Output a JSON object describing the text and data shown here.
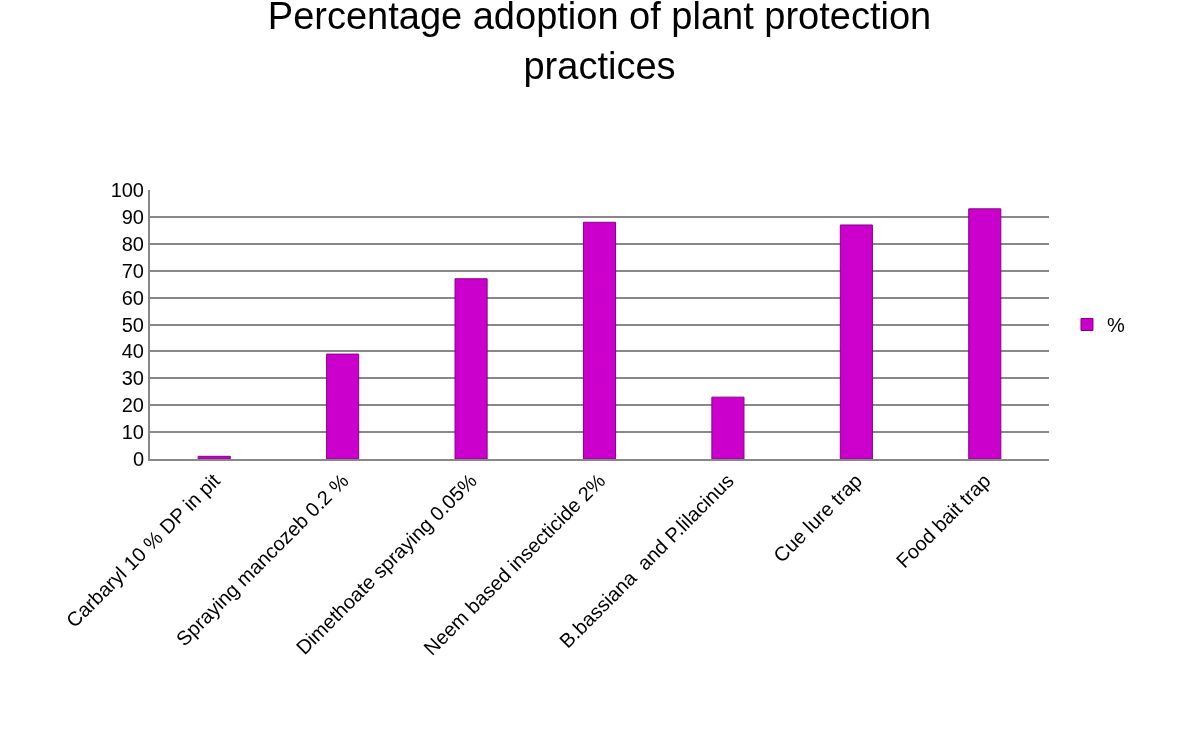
{
  "chart_data": {
    "type": "bar",
    "title": "Percentage adoption of plant protection practices",
    "categories": [
      "Carbaryl 10 % DP in pit",
      "Spraying mancozeb 0.2 %",
      "Dimethoate spraying 0.05%",
      "Neem based insecticide 2%",
      "B.bassiana  and P.lilacinus",
      "Cue lure trap",
      "Food bait trap"
    ],
    "series": [
      {
        "name": "%",
        "color": "#cc00cc",
        "values": [
          1,
          39,
          67,
          88,
          23,
          87,
          93
        ]
      }
    ],
    "ylim": [
      0,
      100
    ],
    "yticks": [
      0,
      10,
      20,
      30,
      40,
      50,
      60,
      70,
      80,
      90,
      100
    ],
    "grid": "y",
    "legend": "right"
  }
}
